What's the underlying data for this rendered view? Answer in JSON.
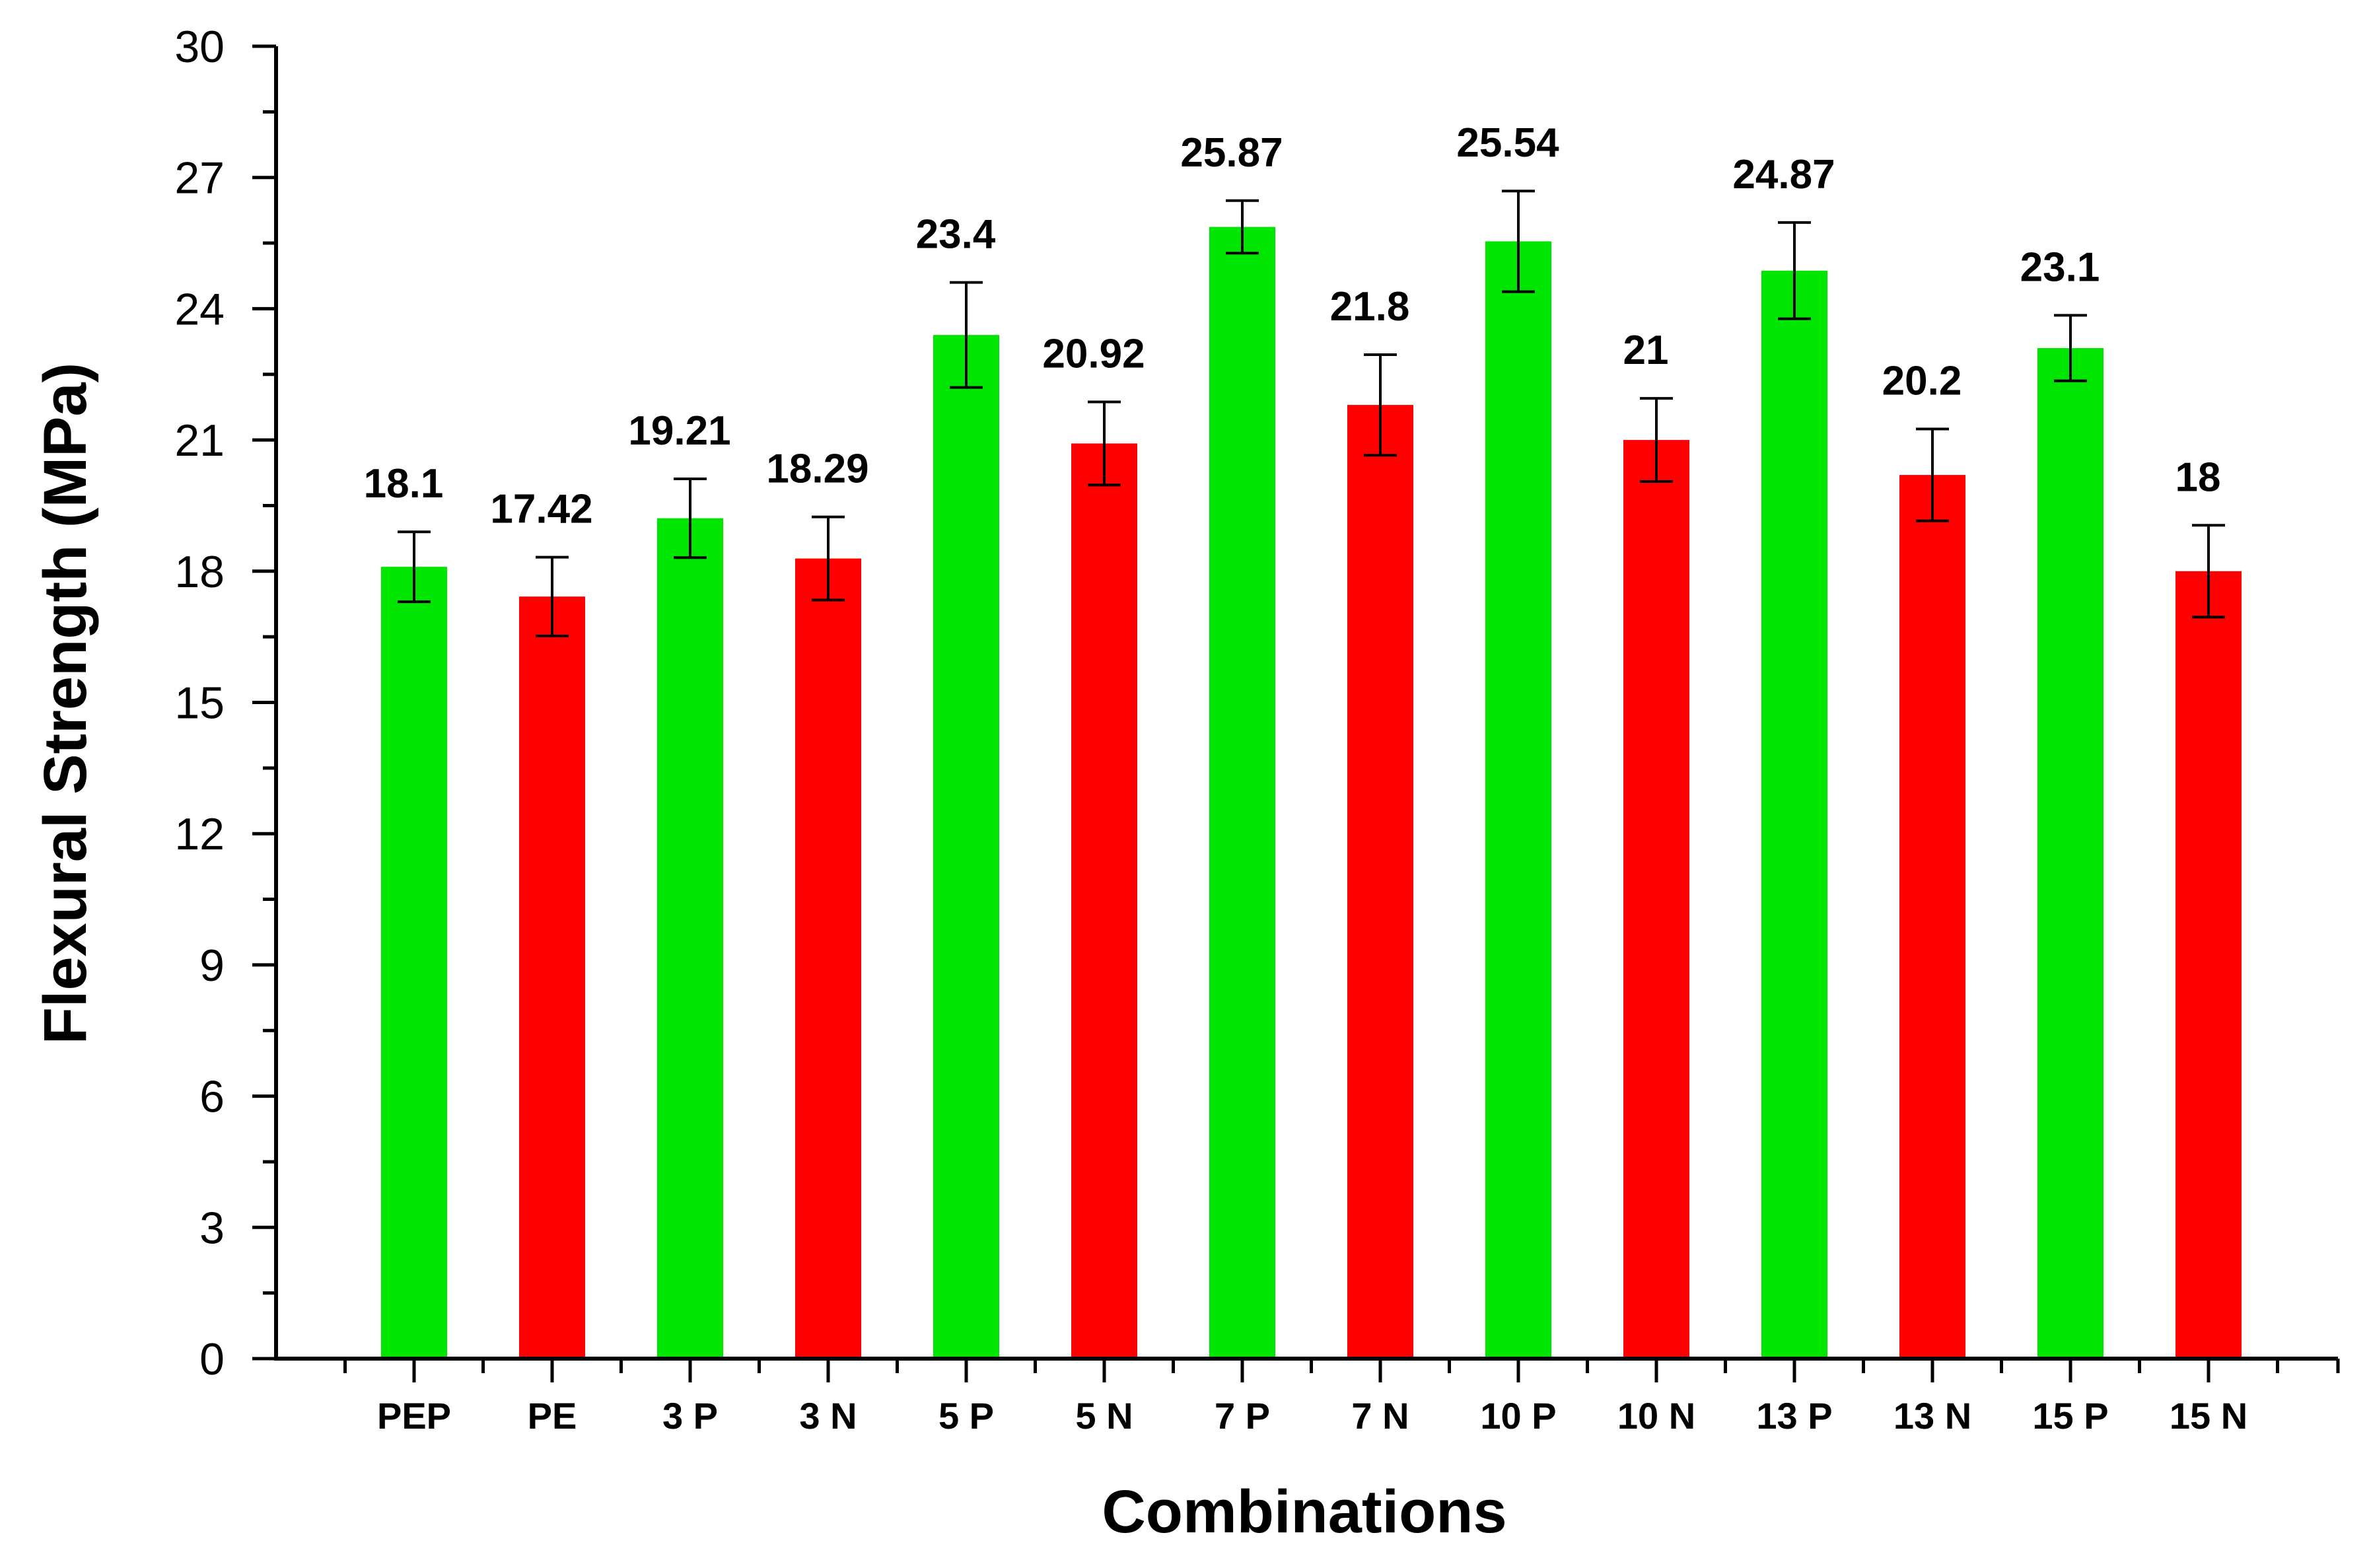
{
  "chart_data": {
    "type": "bar",
    "title": "",
    "xlabel": "Combinations",
    "ylabel": "Flexural Strength (MPa)",
    "ylim": [
      0,
      30
    ],
    "yticks": [
      0,
      3,
      6,
      9,
      12,
      15,
      18,
      21,
      24,
      27,
      30
    ],
    "grid": false,
    "legend": "none",
    "categories": [
      "PEP",
      "PE",
      "3 P",
      "3 N",
      "5 P",
      "5 N",
      "7 P",
      "7  N",
      "10 P",
      "10 N",
      "13 P",
      "13 N",
      "15 P",
      "15 N"
    ],
    "values": [
      18.1,
      17.42,
      19.21,
      18.29,
      23.4,
      20.92,
      25.87,
      21.8,
      25.54,
      21,
      24.87,
      20.2,
      23.1,
      18
    ],
    "data_labels": [
      "18.1",
      "17.42",
      "19.21",
      "18.29",
      "23.4",
      "20.92",
      "25.87",
      "21.8",
      "25.54",
      "21",
      "24.87",
      "20.2",
      "23.1",
      "18"
    ],
    "errors": [
      0.8,
      0.9,
      0.9,
      0.95,
      1.2,
      0.95,
      0.6,
      1.15,
      1.15,
      0.95,
      1.1,
      1.05,
      0.75,
      1.05
    ],
    "bar_colors": [
      "#00e600",
      "#ff0000",
      "#00e600",
      "#ff0000",
      "#00e600",
      "#ff0000",
      "#00e600",
      "#ff0000",
      "#00e600",
      "#ff0000",
      "#00e600",
      "#ff0000",
      "#00e600",
      "#ff0000"
    ]
  }
}
